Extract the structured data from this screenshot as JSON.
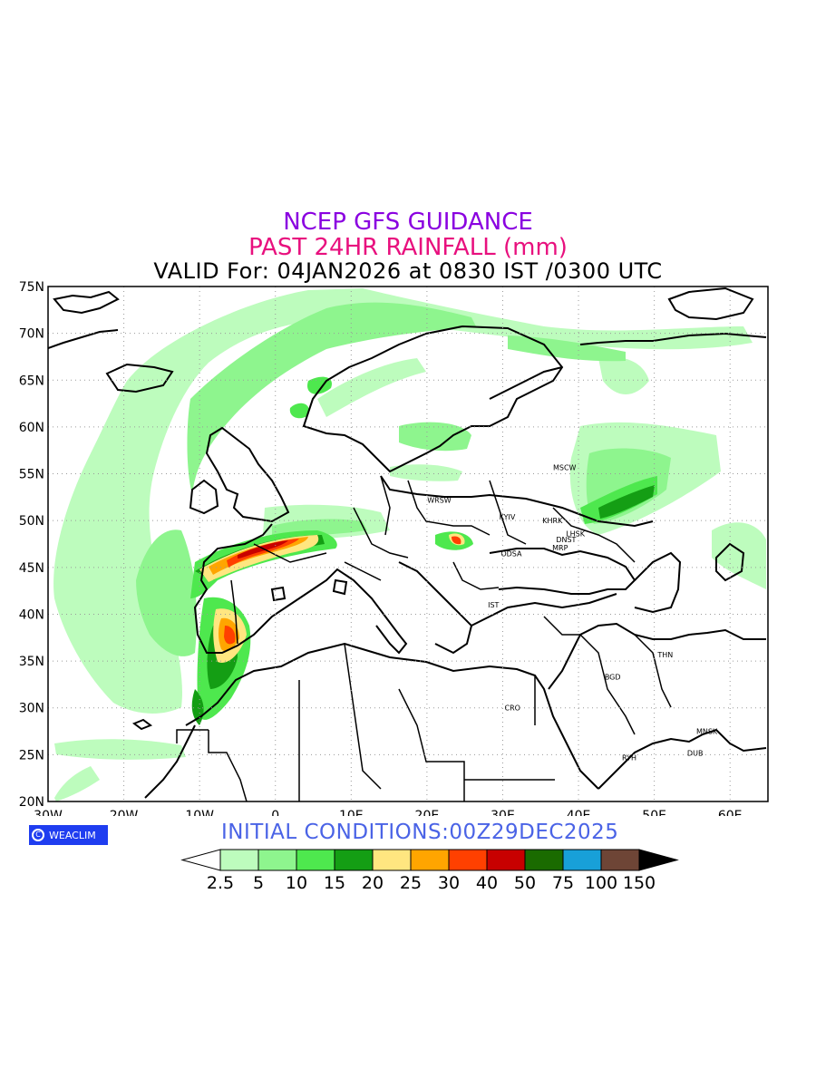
{
  "header": {
    "title": "NCEP GFS GUIDANCE",
    "subtitle": "PAST 24HR RAINFALL (mm)",
    "valid": "VALID For: 04JAN2026 at 0830 IST /0300 UTC",
    "title_color": "#8a00e0",
    "subtitle_color": "#e8107e"
  },
  "map": {
    "lon_ticks": [
      "30W",
      "20W",
      "10W",
      "0",
      "10E",
      "20E",
      "30E",
      "40E",
      "50E",
      "60E"
    ],
    "lat_ticks": [
      "75N",
      "70N",
      "65N",
      "60N",
      "55N",
      "50N",
      "45N",
      "40N",
      "35N",
      "30N",
      "25N",
      "20N"
    ],
    "lon_range": [
      -30,
      65
    ],
    "lat_range": [
      20,
      75
    ],
    "grid": "dotted",
    "cities": [
      {
        "name": "MSCW",
        "lon": 37.6,
        "lat": 55.7
      },
      {
        "name": "WRSW",
        "lon": 21.0,
        "lat": 52.2
      },
      {
        "name": "KYIV",
        "lon": 30.5,
        "lat": 50.4
      },
      {
        "name": "KHRK",
        "lon": 36.2,
        "lat": 50.0
      },
      {
        "name": "LHSK",
        "lon": 39.3,
        "lat": 48.6
      },
      {
        "name": "DNST",
        "lon": 38.0,
        "lat": 48.0
      },
      {
        "name": "MRP",
        "lon": 37.5,
        "lat": 47.1
      },
      {
        "name": "ODSA",
        "lon": 30.7,
        "lat": 46.5
      },
      {
        "name": "IST",
        "lon": 29.0,
        "lat": 41.0
      },
      {
        "name": "THN",
        "lon": 51.4,
        "lat": 35.7
      },
      {
        "name": "BGD",
        "lon": 44.4,
        "lat": 33.3
      },
      {
        "name": "CRO",
        "lon": 31.2,
        "lat": 30.0
      },
      {
        "name": "MNSK",
        "lon": 56.5,
        "lat": 27.5
      },
      {
        "name": "DUB",
        "lon": 55.3,
        "lat": 25.2
      },
      {
        "name": "RYH",
        "lon": 46.7,
        "lat": 24.7
      }
    ]
  },
  "badge": {
    "label": "WEACLIM",
    "icon": "copyright-circle-icon",
    "glyph": "C",
    "color": "#1f3df0"
  },
  "initial_conditions": "INITIAL  CONDITIONS:00Z29DEC2025",
  "initial_color": "#4a63e6",
  "legend": {
    "thresholds": [
      "2.5",
      "5",
      "10",
      "15",
      "20",
      "25",
      "30",
      "40",
      "50",
      "75",
      "100",
      "150"
    ],
    "colors": [
      "#ffffff",
      "#bdfcbd",
      "#8ef58e",
      "#4ee84e",
      "#149e14",
      "#ffe680",
      "#ffa500",
      "#ff4000",
      "#c80000",
      "#1a6b00",
      "#18a0d8",
      "#6e4536",
      "#000000"
    ]
  }
}
